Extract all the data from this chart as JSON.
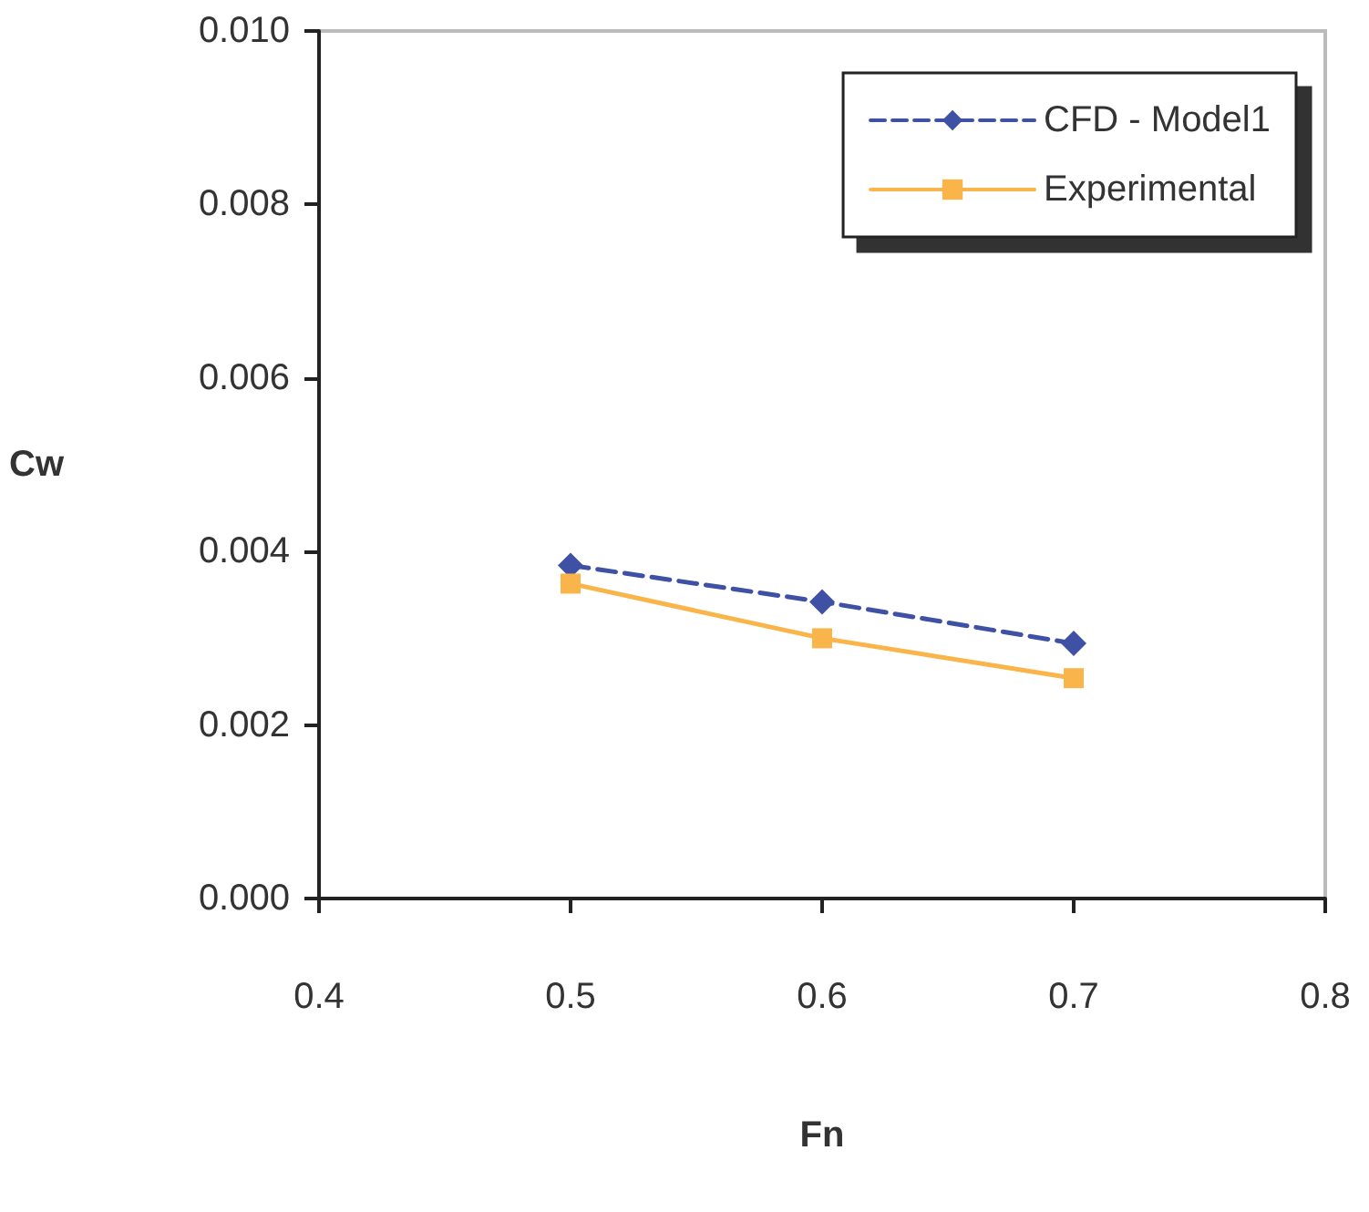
{
  "chart_data": {
    "type": "line",
    "xlabel": "Fn",
    "ylabel": "Cw",
    "x": [
      0.5,
      0.6,
      0.7
    ],
    "series": [
      {
        "name": "CFD - Model1",
        "color": "#3f51a5",
        "values": [
          0.00384,
          0.00342,
          0.00294
        ],
        "marker": "diamond",
        "line_style": "dashed"
      },
      {
        "name": "Experimental",
        "color": "#f9b54a",
        "values": [
          0.00363,
          0.003,
          0.00254
        ],
        "marker": "square",
        "line_style": "solid"
      }
    ],
    "xlim": [
      0.4,
      0.8
    ],
    "xticks": [
      0.4,
      0.5,
      0.6,
      0.7,
      0.8
    ],
    "ylim": [
      0,
      0.01
    ],
    "yticks": [
      {
        "value": 0,
        "label": "0.000"
      },
      0.002,
      0.004,
      0.006,
      0.008,
      {
        "value": 0.01,
        "label": "0.010"
      }
    ],
    "grid": false,
    "legend": "top right"
  }
}
